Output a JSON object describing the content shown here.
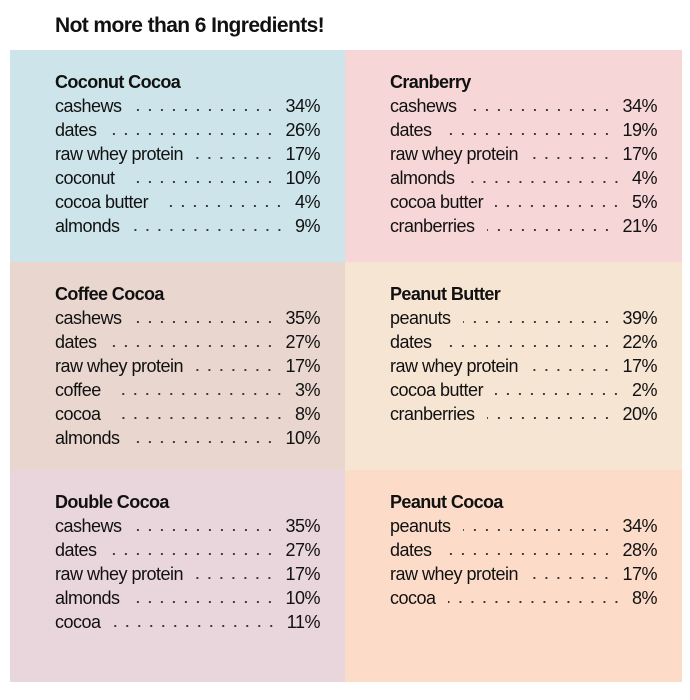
{
  "title": "Not more than 6 Ingredients!",
  "panels": [
    {
      "name": "Coconut Cocoa",
      "color": "#cde5ea",
      "items": [
        [
          "cashews",
          "34%"
        ],
        [
          "dates",
          "26%"
        ],
        [
          "raw whey protein",
          "17%"
        ],
        [
          "coconut",
          "10%"
        ],
        [
          "cocoa butter",
          "4%"
        ],
        [
          "almonds",
          "9%"
        ]
      ]
    },
    {
      "name": "Cranberry",
      "color": "#f6d6d6",
      "items": [
        [
          "cashews",
          "34%"
        ],
        [
          "dates",
          "19%"
        ],
        [
          "raw whey protein",
          "17%"
        ],
        [
          "almonds",
          "4%"
        ],
        [
          "cocoa butter",
          "5%"
        ],
        [
          "cranberries",
          "21%"
        ]
      ]
    },
    {
      "name": "Coffee Cocoa",
      "color": "#e8d6cf",
      "items": [
        [
          "cashews",
          "35%"
        ],
        [
          "dates",
          "27%"
        ],
        [
          "raw whey protein",
          "17%"
        ],
        [
          "coffee",
          "3%"
        ],
        [
          "cocoa",
          "8%"
        ],
        [
          "almonds",
          "10%"
        ]
      ]
    },
    {
      "name": "Peanut Butter",
      "color": "#f7e5d3",
      "items": [
        [
          "peanuts",
          "39%"
        ],
        [
          "dates",
          "22%"
        ],
        [
          "raw whey protein",
          "17%"
        ],
        [
          "cocoa butter",
          "2%"
        ],
        [
          "cranberries",
          "20%"
        ]
      ]
    },
    {
      "name": "Double Cocoa",
      "color": "#e9d5dc",
      "items": [
        [
          "cashews",
          "35%"
        ],
        [
          "dates",
          "27%"
        ],
        [
          "raw whey protein",
          "17%"
        ],
        [
          "almonds",
          "10%"
        ],
        [
          "cocoa",
          "11%"
        ]
      ]
    },
    {
      "name": "Peanut Cocoa",
      "color": "#fcdcc8",
      "items": [
        [
          "peanuts",
          "34%"
        ],
        [
          "dates",
          "28%"
        ],
        [
          "raw whey protein",
          "17%"
        ],
        [
          "cocoa",
          "8%"
        ]
      ]
    }
  ]
}
